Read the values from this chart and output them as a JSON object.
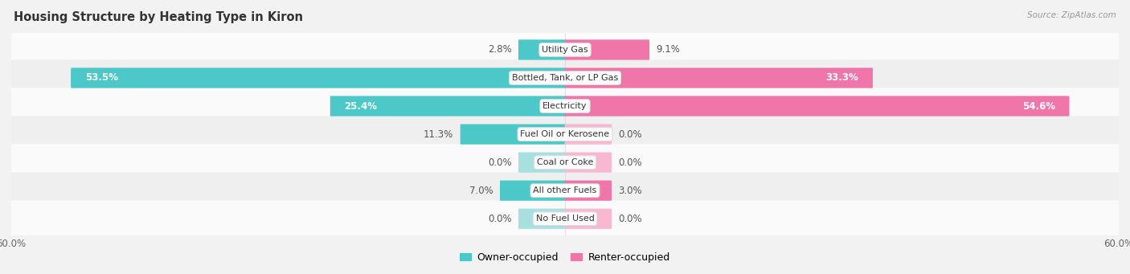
{
  "title": "Housing Structure by Heating Type in Kiron",
  "source": "Source: ZipAtlas.com",
  "categories": [
    "Utility Gas",
    "Bottled, Tank, or LP Gas",
    "Electricity",
    "Fuel Oil or Kerosene",
    "Coal or Coke",
    "All other Fuels",
    "No Fuel Used"
  ],
  "owner_values": [
    2.8,
    53.5,
    25.4,
    11.3,
    0.0,
    7.0,
    0.0
  ],
  "renter_values": [
    9.1,
    33.3,
    54.6,
    0.0,
    0.0,
    3.0,
    0.0
  ],
  "owner_color": "#4DC8C8",
  "renter_color": "#F075A8",
  "owner_stub_color": "#A8E0E0",
  "renter_stub_color": "#F8B8D0",
  "axis_max": 60.0,
  "bg_color": "#F2F2F2",
  "row_colors": [
    "#FAFAFA",
    "#EFEFEF"
  ],
  "title_fontsize": 10.5,
  "val_fontsize": 8.5,
  "cat_fontsize": 8.0,
  "tick_fontsize": 8.5,
  "legend_fontsize": 9.0,
  "stub_size": 5.0
}
